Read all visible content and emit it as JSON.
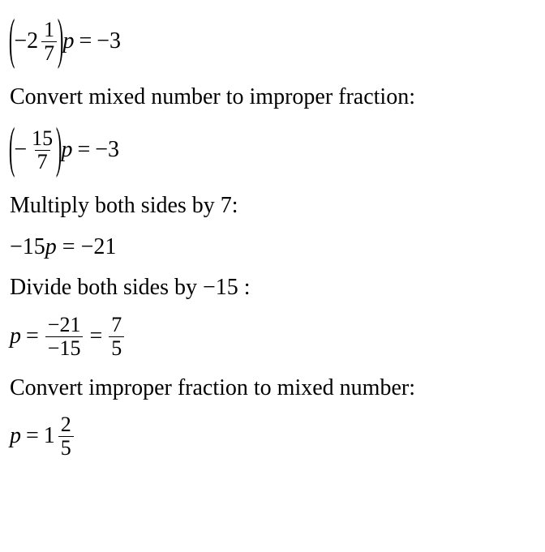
{
  "eq1": {
    "lp": "(",
    "rp": ")",
    "coef_whole": "−2",
    "coef_num": "1",
    "coef_den": "7",
    "var": "p",
    "eq": "=",
    "rhs": "−3"
  },
  "step1": {
    "text": "Convert mixed number to improper fraction:"
  },
  "eq2": {
    "lp": "(",
    "rp": ")",
    "neg": "−",
    "num": "15",
    "den": "7",
    "var": "p",
    "eq": "=",
    "rhs": "−3"
  },
  "step2": {
    "text": "Multiply both sides by 7:"
  },
  "eq3": {
    "line": "−15p = −21"
  },
  "step3": {
    "pre": "Divide both sides by ",
    "val": "−15",
    "post": " :"
  },
  "eq4": {
    "var": "p",
    "eq1": "=",
    "f1_num": "−21",
    "f1_den": "−15",
    "eq2": "=",
    "f2_num": "7",
    "f2_den": "5"
  },
  "step4": {
    "text": "Convert improper fraction to mixed number:"
  },
  "eq5": {
    "var": "p",
    "eq": "=",
    "whole": "1",
    "num": "2",
    "den": "5"
  }
}
